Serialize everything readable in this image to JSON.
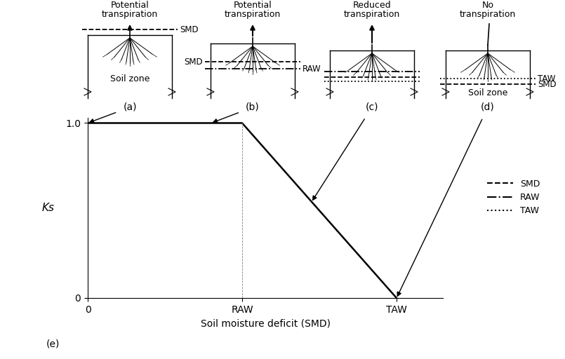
{
  "diagram": {
    "panels": [
      {
        "title": "Potential\ntranspiration",
        "lines": [
          "SMD"
        ],
        "labels": [
          "SMD"
        ],
        "text": "Soil zone"
      },
      {
        "title": "Potential\ntranspiration",
        "lines": [
          "SMD",
          "RAW"
        ],
        "labels": [
          "SMD",
          "RAW"
        ]
      },
      {
        "title": "Reduced\ntranspiration",
        "lines": [
          "RAW",
          "SMD",
          "TAW"
        ],
        "labels": []
      },
      {
        "title": "No\ntranspiration",
        "lines": [
          "TAW",
          "SMD"
        ],
        "labels": [
          "TAW",
          "SMD"
        ],
        "text": "Soil zone"
      }
    ],
    "legend": [
      {
        "name": "SMD",
        "line_style": "dashed"
      },
      {
        "name": "RAW",
        "line_style": "dashdot"
      },
      {
        "name": "TAW",
        "line_style": "dotted"
      }
    ]
  },
  "chart_data": {
    "type": "line",
    "x": [
      0,
      1,
      2
    ],
    "values": [
      1,
      1,
      0
    ],
    "color": "#000000",
    "xlabel": "Soil moisture deficit (SMD)",
    "ylabel": "Ks",
    "xlim": [
      0,
      2.3
    ],
    "ylim": [
      0,
      1.03
    ],
    "xticks": [
      0,
      {
        "value": 1,
        "label": "RAW"
      },
      {
        "value": 2,
        "label": "TAW"
      }
    ],
    "yticks": [
      0,
      {
        "value": 1,
        "label": "1.0"
      }
    ],
    "annotations": [
      {
        "text": "(a)",
        "x": 0,
        "y": 1
      },
      {
        "text": "(b)",
        "x": 0.8,
        "y": 1
      },
      {
        "text": "(c)",
        "x": 1.45,
        "y": 0.55
      },
      {
        "text": "(d)",
        "x": 2,
        "y": 0
      }
    ],
    "tag": "(e)"
  }
}
